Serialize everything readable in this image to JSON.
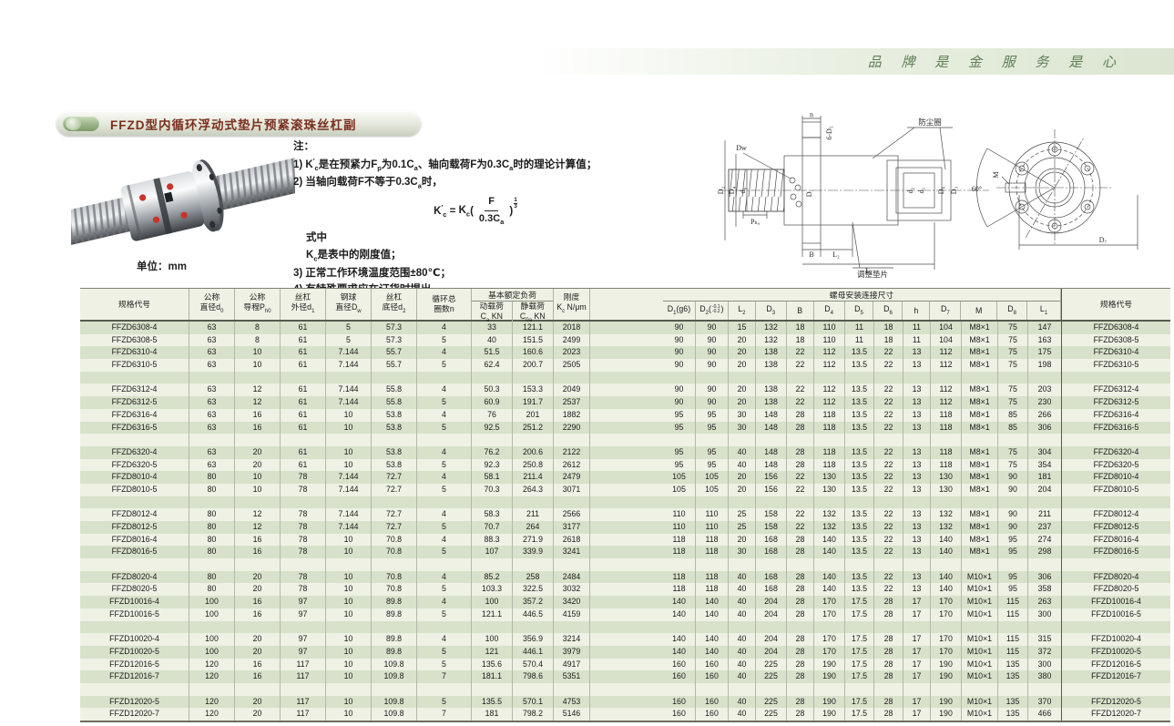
{
  "page": {
    "slogan": "品 牌 是 金 服 务 是 心",
    "section_title": "FFZD型内循环浮动式垫片预紧滚珠丝杠副",
    "unit_note": "单位：mm"
  },
  "notes": {
    "heading": "注：",
    "n1": [
      {
        "t": "1) K"
      },
      {
        "u": "′"
      },
      {
        "s": "c"
      },
      {
        "t": "是在预紧力F"
      },
      {
        "s": "p"
      },
      {
        "t": "为0.1C"
      },
      {
        "s": "a"
      },
      {
        "t": "、轴向载荷F为0.3C"
      },
      {
        "s": "a"
      },
      {
        "t": "时的理论计算值；"
      }
    ],
    "n2": [
      {
        "t": "2) 当轴向载荷F不等于0.3C"
      },
      {
        "s": "a"
      },
      {
        "t": "时，"
      }
    ],
    "formula": {
      "lhs": [
        {
          "t": "K"
        },
        {
          "u": "′"
        },
        {
          "s": "c"
        }
      ],
      "eq": "=",
      "rhs_base": [
        {
          "t": "K"
        },
        {
          "s": "c"
        }
      ],
      "open": "(",
      "num": "F",
      "den": [
        {
          "t": "0.3C"
        },
        {
          "s": "a"
        }
      ],
      "close": ")",
      "exp_num": "1",
      "exp_den": "3"
    },
    "mid": "式中",
    "kc_line": [
      {
        "t": "K"
      },
      {
        "s": "c"
      },
      {
        "t": "是表中的刚度值；"
      }
    ],
    "n3": "3) 正常工作环境温度范围±80℃；",
    "n4": "4) 有特殊要求应在订货时提出。"
  },
  "drawing": {
    "dust_ring": "防尘圈",
    "shim": "调整垫片",
    "labels": {
      "h": "h",
      "d5": "6-D₅",
      "dw": "Dw",
      "d2_left": "D₂",
      "d4": "D₄",
      "d0": "d₀",
      "pha": "Pₕₐ",
      "b": "B",
      "l2": "L₂",
      "l1": "L₁",
      "d1_nut": "D₁",
      "d2_right": "d₂",
      "d1_right": "d₁",
      "d6": "D₆",
      "d3": "D₃",
      "deg": "60°",
      "m": "M",
      "d7": "D₇"
    }
  },
  "table": {
    "headers_left": {
      "code": [
        {
          "t": "规格代号"
        }
      ],
      "d0_l1": [
        {
          "t": "公称"
        }
      ],
      "d0_l2": [
        {
          "t": "直径d"
        },
        {
          "s": "0"
        }
      ],
      "ph_l1": [
        {
          "t": "公称"
        }
      ],
      "ph_l2": [
        {
          "t": "导程P"
        },
        {
          "s": "h0"
        }
      ],
      "d1_l1": [
        {
          "t": "丝杠"
        }
      ],
      "d1_l2": [
        {
          "t": "外径d"
        },
        {
          "s": "1"
        }
      ],
      "dw_l1": [
        {
          "t": "钢球"
        }
      ],
      "dw_l2": [
        {
          "t": "直径D"
        },
        {
          "s": "w"
        }
      ],
      "d2_l1": [
        {
          "t": "丝杠"
        }
      ],
      "d2_l2": [
        {
          "t": "底径d"
        },
        {
          "s": "2"
        }
      ],
      "n_l1": [
        {
          "t": "循环总"
        }
      ],
      "n_l2": [
        {
          "t": "圈数n"
        }
      ],
      "load_group": [
        {
          "t": "基本额定负荷"
        }
      ],
      "ca_l1": [
        {
          "t": "动载荷"
        }
      ],
      "ca_l2": [
        {
          "t": "C"
        },
        {
          "s": "a"
        },
        {
          "t": " KN"
        }
      ],
      "c0a_l1": [
        {
          "t": "静载荷"
        }
      ],
      "c0a_l2": [
        {
          "t": "C"
        },
        {
          "s": "0a"
        },
        {
          "t": " KN"
        }
      ],
      "kc_l1": [
        {
          "t": "刚度"
        }
      ],
      "kc_l2": [
        {
          "t": "K"
        },
        {
          "s": "c"
        },
        {
          "t": " N/μm"
        }
      ]
    },
    "headers_right": {
      "group": [
        {
          "t": "螺母安装连接尺寸"
        }
      ],
      "cols": [
        [
          {
            "t": "D"
          },
          {
            "s": "1"
          },
          {
            "t": "(g6)"
          }
        ],
        [
          {
            "t": "D"
          },
          {
            "s": "2"
          },
          {
            "t": "("
          },
          {
            "k": [
              "-0.1",
              "-0.2"
            ]
          },
          {
            "t": ")"
          }
        ],
        [
          {
            "t": "L"
          },
          {
            "s": "2"
          }
        ],
        [
          {
            "t": "D"
          },
          {
            "s": "3"
          }
        ],
        [
          {
            "t": "B"
          }
        ],
        [
          {
            "t": "D"
          },
          {
            "s": "4"
          }
        ],
        [
          {
            "t": "D"
          },
          {
            "s": "5"
          }
        ],
        [
          {
            "t": "D"
          },
          {
            "s": "6"
          }
        ],
        [
          {
            "t": "h"
          }
        ],
        [
          {
            "t": "D"
          },
          {
            "s": "7"
          }
        ],
        [
          {
            "t": "M"
          }
        ],
        [
          {
            "t": "D"
          },
          {
            "s": "8"
          }
        ],
        [
          {
            "t": "L"
          },
          {
            "s": "1"
          }
        ]
      ],
      "code": [
        {
          "t": "规格代号"
        }
      ]
    },
    "rows": [
      [
        "FFZD6308-4",
        "63",
        "8",
        "61",
        "5",
        "57.3",
        "4",
        "33",
        "121.1",
        "2018",
        "90",
        "90",
        "15",
        "132",
        "18",
        "110",
        "11",
        "18",
        "11",
        "104",
        "M8×1",
        "75",
        "147",
        "FFZD6308-4"
      ],
      [
        "FFZD6308-5",
        "63",
        "8",
        "61",
        "5",
        "57.3",
        "5",
        "40",
        "151.5",
        "2499",
        "90",
        "90",
        "20",
        "132",
        "18",
        "110",
        "11",
        "18",
        "11",
        "104",
        "M8×1",
        "75",
        "163",
        "FFZD6308-5"
      ],
      [
        "FFZD6310-4",
        "63",
        "10",
        "61",
        "7.144",
        "55.7",
        "4",
        "51.5",
        "160.6",
        "2023",
        "90",
        "90",
        "20",
        "138",
        "22",
        "112",
        "13.5",
        "22",
        "13",
        "112",
        "M8×1",
        "75",
        "175",
        "FFZD6310-4"
      ],
      [
        "FFZD6310-5",
        "63",
        "10",
        "61",
        "7.144",
        "55.7",
        "5",
        "62.4",
        "200.7",
        "2505",
        "90",
        "90",
        "20",
        "138",
        "22",
        "112",
        "13.5",
        "22",
        "13",
        "112",
        "M8×1",
        "75",
        "198",
        "FFZD6310-5"
      ],
      [],
      [
        "FFZD6312-4",
        "63",
        "12",
        "61",
        "7.144",
        "55.8",
        "4",
        "50.3",
        "153.3",
        "2049",
        "90",
        "90",
        "20",
        "138",
        "22",
        "112",
        "13.5",
        "22",
        "13",
        "112",
        "M8×1",
        "75",
        "203",
        "FFZD6312-4"
      ],
      [
        "FFZD6312-5",
        "63",
        "12",
        "61",
        "7.144",
        "55.8",
        "5",
        "60.9",
        "191.7",
        "2537",
        "90",
        "90",
        "20",
        "138",
        "22",
        "112",
        "13.5",
        "22",
        "13",
        "112",
        "M8×1",
        "75",
        "230",
        "FFZD6312-5"
      ],
      [
        "FFZD6316-4",
        "63",
        "16",
        "61",
        "10",
        "53.8",
        "4",
        "76",
        "201",
        "1882",
        "95",
        "95",
        "30",
        "148",
        "28",
        "118",
        "13.5",
        "22",
        "13",
        "118",
        "M8×1",
        "85",
        "266",
        "FFZD6316-4"
      ],
      [
        "FFZD6316-5",
        "63",
        "16",
        "61",
        "10",
        "53.8",
        "5",
        "92.5",
        "251.2",
        "2290",
        "95",
        "95",
        "30",
        "148",
        "28",
        "118",
        "13.5",
        "22",
        "13",
        "118",
        "M8×1",
        "85",
        "306",
        "FFZD6316-5"
      ],
      [],
      [
        "FFZD6320-4",
        "63",
        "20",
        "61",
        "10",
        "53.8",
        "4",
        "76.2",
        "200.6",
        "2122",
        "95",
        "95",
        "40",
        "148",
        "28",
        "118",
        "13.5",
        "22",
        "13",
        "118",
        "M8×1",
        "75",
        "304",
        "FFZD6320-4"
      ],
      [
        "FFZD6320-5",
        "63",
        "20",
        "61",
        "10",
        "53.8",
        "5",
        "92.3",
        "250.8",
        "2612",
        "95",
        "95",
        "40",
        "148",
        "28",
        "118",
        "13.5",
        "22",
        "13",
        "118",
        "M8×1",
        "75",
        "354",
        "FFZD6320-5"
      ],
      [
        "FFZD8010-4",
        "80",
        "10",
        "78",
        "7.144",
        "72.7",
        "4",
        "58.1",
        "211.4",
        "2479",
        "105",
        "105",
        "20",
        "156",
        "22",
        "130",
        "13.5",
        "22",
        "13",
        "130",
        "M8×1",
        "90",
        "181",
        "FFZD8010-4"
      ],
      [
        "FFZD8010-5",
        "80",
        "10",
        "78",
        "7.144",
        "72.7",
        "5",
        "70.3",
        "264.3",
        "3071",
        "105",
        "105",
        "20",
        "156",
        "22",
        "130",
        "13.5",
        "22",
        "13",
        "130",
        "M8×1",
        "90",
        "204",
        "FFZD8010-5"
      ],
      [],
      [
        "FFZD8012-4",
        "80",
        "12",
        "78",
        "7.144",
        "72.7",
        "4",
        "58.3",
        "211",
        "2566",
        "110",
        "110",
        "25",
        "158",
        "22",
        "132",
        "13.5",
        "22",
        "13",
        "132",
        "M8×1",
        "90",
        "211",
        "FFZD8012-4"
      ],
      [
        "FFZD8012-5",
        "80",
        "12",
        "78",
        "7.144",
        "72.7",
        "5",
        "70.7",
        "264",
        "3177",
        "110",
        "110",
        "25",
        "158",
        "22",
        "132",
        "13.5",
        "22",
        "13",
        "132",
        "M8×1",
        "90",
        "237",
        "FFZD8012-5"
      ],
      [
        "FFZD8016-4",
        "80",
        "16",
        "78",
        "10",
        "70.8",
        "4",
        "88.3",
        "271.9",
        "2618",
        "118",
        "118",
        "20",
        "168",
        "28",
        "140",
        "13.5",
        "22",
        "13",
        "140",
        "M8×1",
        "95",
        "274",
        "FFZD8016-4"
      ],
      [
        "FFZD8016-5",
        "80",
        "16",
        "78",
        "10",
        "70.8",
        "5",
        "107",
        "339.9",
        "3241",
        "118",
        "118",
        "30",
        "168",
        "28",
        "140",
        "13.5",
        "22",
        "13",
        "140",
        "M8×1",
        "95",
        "298",
        "FFZD8016-5"
      ],
      [],
      [
        "FFZD8020-4",
        "80",
        "20",
        "78",
        "10",
        "70.8",
        "4",
        "85.2",
        "258",
        "2484",
        "118",
        "118",
        "40",
        "168",
        "28",
        "140",
        "13.5",
        "22",
        "13",
        "140",
        "M10×1",
        "95",
        "306",
        "FFZD8020-4"
      ],
      [
        "FFZD8020-5",
        "80",
        "20",
        "78",
        "10",
        "70.8",
        "5",
        "103.3",
        "322.5",
        "3032",
        "118",
        "118",
        "40",
        "168",
        "28",
        "140",
        "13.5",
        "22",
        "13",
        "140",
        "M10×1",
        "95",
        "358",
        "FFZD8020-5"
      ],
      [
        "FFZD10016-4",
        "100",
        "16",
        "97",
        "10",
        "89.8",
        "4",
        "100",
        "357.2",
        "3420",
        "140",
        "140",
        "40",
        "204",
        "28",
        "170",
        "17.5",
        "28",
        "17",
        "170",
        "M10×1",
        "115",
        "263",
        "FFZD10016-4"
      ],
      [
        "FFZD10016-5",
        "100",
        "16",
        "97",
        "10",
        "89.8",
        "5",
        "121.1",
        "446.5",
        "4159",
        "140",
        "140",
        "40",
        "204",
        "28",
        "170",
        "17.5",
        "28",
        "17",
        "170",
        "M10×1",
        "115",
        "300",
        "FFZD10016-5"
      ],
      [],
      [
        "FFZD10020-4",
        "100",
        "20",
        "97",
        "10",
        "89.8",
        "4",
        "100",
        "356.9",
        "3214",
        "140",
        "140",
        "40",
        "204",
        "28",
        "170",
        "17.5",
        "28",
        "17",
        "170",
        "M10×1",
        "115",
        "315",
        "FFZD10020-4"
      ],
      [
        "FFZD10020-5",
        "100",
        "20",
        "97",
        "10",
        "89.8",
        "5",
        "121",
        "446.1",
        "3979",
        "140",
        "140",
        "40",
        "204",
        "28",
        "170",
        "17.5",
        "28",
        "17",
        "170",
        "M10×1",
        "115",
        "372",
        "FFZD10020-5"
      ],
      [
        "FFZD12016-5",
        "120",
        "16",
        "117",
        "10",
        "109.8",
        "5",
        "135.6",
        "570.4",
        "4917",
        "160",
        "160",
        "40",
        "225",
        "28",
        "190",
        "17.5",
        "28",
        "17",
        "190",
        "M10×1",
        "135",
        "300",
        "FFZD12016-5"
      ],
      [
        "FFZD12016-7",
        "120",
        "16",
        "117",
        "10",
        "109.8",
        "7",
        "181.1",
        "798.6",
        "5351",
        "160",
        "160",
        "40",
        "225",
        "28",
        "190",
        "17.5",
        "28",
        "17",
        "190",
        "M10×1",
        "135",
        "380",
        "FFZD12016-7"
      ],
      [],
      [
        "FFZD12020-5",
        "120",
        "20",
        "117",
        "10",
        "109.8",
        "5",
        "135.5",
        "570.1",
        "4753",
        "160",
        "160",
        "40",
        "225",
        "28",
        "190",
        "17.5",
        "28",
        "17",
        "190",
        "M10×1",
        "135",
        "370",
        "FFZD12020-5"
      ],
      [
        "FFZD12020-7",
        "120",
        "20",
        "117",
        "10",
        "109.8",
        "7",
        "181",
        "798.2",
        "5146",
        "160",
        "160",
        "40",
        "225",
        "28",
        "190",
        "17.5",
        "28",
        "17",
        "190",
        "M10×1",
        "135",
        "466",
        "FFZD12020-7"
      ]
    ]
  },
  "colors": {
    "stripe_green": "#d8e1ca",
    "stripe_light": "#eef1e4",
    "title_red": "#7a2f1d",
    "slogan_green": "#5f7f57",
    "band_green": "#dbe5d1"
  }
}
